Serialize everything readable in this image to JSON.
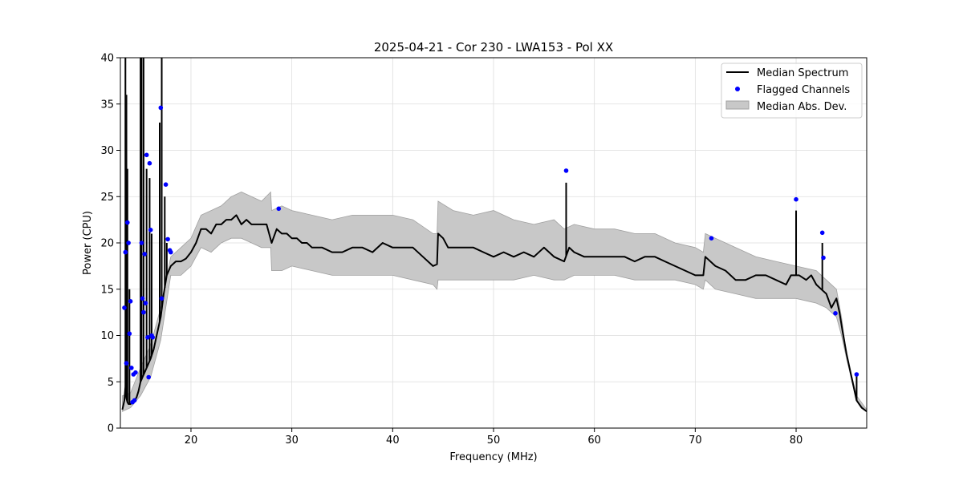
{
  "chart_data": {
    "type": "line",
    "title": "2025-04-21 - Cor 230 - LWA153 - Pol XX",
    "xlabel": "Frequency (MHz)",
    "ylabel": "Power (CPU)",
    "xlim": [
      13,
      87
    ],
    "ylim": [
      0,
      40
    ],
    "xticks": [
      20,
      30,
      40,
      50,
      60,
      70,
      80
    ],
    "yticks": [
      0,
      5,
      10,
      15,
      20,
      25,
      30,
      35,
      40
    ],
    "grid": true,
    "legend_position": "top-right",
    "colors": {
      "median": "#000000",
      "flagged": "#0000ff",
      "mad_fill": "#c8c8c8",
      "mad_edge": "#a0a0a0"
    },
    "legend": [
      {
        "label": "Median Spectrum",
        "kind": "line"
      },
      {
        "label": "Flagged Channels",
        "kind": "dot"
      },
      {
        "label": "Median Abs. Dev.",
        "kind": "patch"
      }
    ],
    "series": [
      {
        "name": "Median Spectrum",
        "x": [
          13.2,
          13.4,
          13.5,
          13.6,
          13.7,
          13.8,
          14.0,
          14.2,
          14.4,
          14.6,
          14.8,
          15.0,
          15.2,
          15.4,
          15.6,
          15.8,
          16.0,
          16.3,
          16.6,
          17.0,
          17.3,
          17.6,
          18.0,
          18.5,
          19.0,
          19.5,
          20.0,
          20.5,
          21.0,
          21.5,
          22.0,
          22.5,
          23.0,
          23.5,
          24.0,
          24.5,
          25.0,
          25.5,
          26.0,
          26.5,
          27.0,
          27.5,
          28.0,
          28.5,
          29.0,
          29.5,
          30.0,
          30.5,
          31.0,
          31.5,
          32.0,
          33.0,
          34.0,
          35.0,
          36.0,
          37.0,
          38.0,
          39.0,
          40.0,
          41.0,
          42.0,
          43.0,
          44.0,
          44.4,
          44.5,
          45.0,
          45.5,
          46.0,
          47.0,
          48.0,
          49.0,
          50.0,
          51.0,
          52.0,
          53.0,
          54.0,
          55.0,
          56.0,
          57.0,
          57.5,
          58.0,
          59.0,
          60.0,
          61.0,
          62.0,
          63.0,
          64.0,
          65.0,
          66.0,
          67.0,
          68.0,
          69.0,
          70.0,
          70.8,
          71.0,
          72.0,
          73.0,
          74.0,
          75.0,
          76.0,
          77.0,
          78.0,
          79.0,
          79.5,
          80.3,
          81.0,
          81.5,
          82.0,
          82.5,
          83.0,
          83.5,
          84.0,
          84.3,
          84.6,
          85.0,
          85.5,
          86.0,
          86.5,
          87.0
        ],
        "values": [
          2.0,
          3.0,
          4.5,
          3.2,
          2.8,
          2.6,
          2.6,
          2.8,
          3.0,
          3.3,
          4.0,
          5.0,
          5.5,
          6.0,
          6.5,
          7.0,
          7.5,
          8.5,
          10.0,
          12.0,
          14.5,
          16.5,
          17.5,
          18.0,
          18.0,
          18.3,
          19.0,
          20.0,
          21.5,
          21.5,
          21.0,
          22.0,
          22.0,
          22.5,
          22.5,
          23.0,
          22.0,
          22.5,
          22.0,
          22.0,
          22.0,
          22.0,
          20.0,
          21.5,
          21.0,
          21.0,
          20.5,
          20.5,
          20.0,
          20.0,
          19.5,
          19.5,
          19.0,
          19.0,
          19.5,
          19.5,
          19.0,
          20.0,
          19.5,
          19.5,
          19.5,
          18.5,
          17.5,
          17.7,
          21.0,
          20.5,
          19.5,
          19.5,
          19.5,
          19.5,
          19.0,
          18.5,
          19.0,
          18.5,
          19.0,
          18.5,
          19.5,
          18.5,
          18.0,
          19.5,
          19.0,
          18.5,
          18.5,
          18.5,
          18.5,
          18.5,
          18.0,
          18.5,
          18.5,
          18.0,
          17.5,
          17.0,
          16.5,
          16.5,
          18.5,
          17.5,
          17.0,
          16.0,
          16.0,
          16.5,
          16.5,
          16.0,
          15.5,
          16.5,
          16.5,
          16.0,
          16.5,
          15.5,
          15.0,
          14.5,
          13.0,
          14.0,
          12.5,
          10.5,
          8.0,
          5.5,
          3.0,
          2.2,
          1.8
        ]
      },
      {
        "name": "Median Abs. Dev.",
        "x": [
          13.2,
          14.0,
          15.0,
          16.0,
          17.0,
          18.0,
          19.0,
          20.0,
          21.0,
          22.0,
          23.0,
          24.0,
          25.0,
          26.0,
          27.0,
          27.9,
          28.0,
          29.0,
          30.0,
          32.0,
          34.0,
          36.0,
          38.0,
          40.0,
          42.0,
          44.0,
          44.4,
          44.5,
          46.0,
          48.0,
          50.0,
          52.0,
          54.0,
          56.0,
          57.0,
          58.0,
          60.0,
          62.0,
          64.0,
          66.0,
          68.0,
          70.0,
          70.8,
          71.0,
          72.0,
          74.0,
          76.0,
          78.0,
          80.0,
          82.0,
          83.0,
          84.0,
          84.5,
          85.0,
          86.0,
          87.0
        ],
        "upper": [
          3.5,
          3.8,
          6.5,
          9.0,
          13.0,
          18.5,
          19.5,
          20.5,
          23.0,
          23.5,
          24.0,
          25.0,
          25.5,
          25.0,
          24.5,
          25.5,
          23.5,
          24.0,
          23.5,
          23.0,
          22.5,
          23.0,
          23.0,
          23.0,
          22.5,
          21.0,
          21.0,
          24.5,
          23.5,
          23.0,
          23.5,
          22.5,
          22.0,
          22.5,
          21.5,
          22.0,
          21.5,
          21.5,
          21.0,
          21.0,
          20.0,
          19.5,
          19.0,
          21.0,
          20.5,
          19.5,
          18.5,
          18.0,
          17.5,
          17.0,
          16.0,
          15.0,
          12.0,
          8.0,
          3.5,
          2.0
        ],
        "lower": [
          1.8,
          2.2,
          3.5,
          5.5,
          9.5,
          16.5,
          16.5,
          17.5,
          19.5,
          19.0,
          20.0,
          20.5,
          20.5,
          20.0,
          19.5,
          19.5,
          17.0,
          17.0,
          17.5,
          17.0,
          16.5,
          16.5,
          16.5,
          16.5,
          16.0,
          15.5,
          15.0,
          16.0,
          16.0,
          16.0,
          16.0,
          16.0,
          16.5,
          16.0,
          16.0,
          16.5,
          16.5,
          16.5,
          16.0,
          16.0,
          16.0,
          15.5,
          15.0,
          16.0,
          15.0,
          14.5,
          14.0,
          14.0,
          14.0,
          13.5,
          13.0,
          12.0,
          10.0,
          7.5,
          3.0,
          1.8
        ]
      },
      {
        "name": "Flagged Channels",
        "x": [
          13.4,
          13.5,
          13.6,
          13.7,
          13.8,
          13.9,
          14.0,
          14.1,
          14.2,
          14.3,
          14.4,
          14.5,
          15.1,
          15.2,
          15.3,
          15.4,
          15.5,
          15.6,
          15.7,
          15.8,
          15.9,
          16.0,
          16.1,
          16.2,
          17.0,
          17.1,
          17.5,
          17.7,
          17.9,
          18.0,
          28.7,
          57.2,
          71.6,
          80.0,
          82.6,
          82.7,
          83.9,
          86.0
        ],
        "values": [
          13.0,
          19.0,
          7.0,
          22.2,
          20.0,
          10.2,
          13.7,
          6.5,
          2.8,
          5.8,
          3.0,
          6.0,
          20.0,
          14.0,
          12.5,
          18.8,
          13.5,
          29.5,
          9.8,
          5.5,
          28.6,
          21.4,
          10.0,
          9.8,
          34.6,
          14.0,
          26.3,
          20.4,
          19.2,
          19.0,
          23.7,
          27.8,
          20.5,
          24.7,
          21.1,
          18.4,
          12.4,
          5.8
        ]
      },
      {
        "name": "spikes",
        "x": [
          13.5,
          13.6,
          13.7,
          13.9,
          15.0,
          15.1,
          15.3,
          15.6,
          15.9,
          16.1,
          16.9,
          17.1,
          17.4,
          17.6,
          57.2,
          80.0,
          82.6,
          86.0
        ],
        "values": [
          40.0,
          36.0,
          28.0,
          15.0,
          40.0,
          40.0,
          40.0,
          28.0,
          27.0,
          21.0,
          33.0,
          40.0,
          25.0,
          20.0,
          26.5,
          23.5,
          20.0,
          5.7
        ]
      }
    ]
  }
}
